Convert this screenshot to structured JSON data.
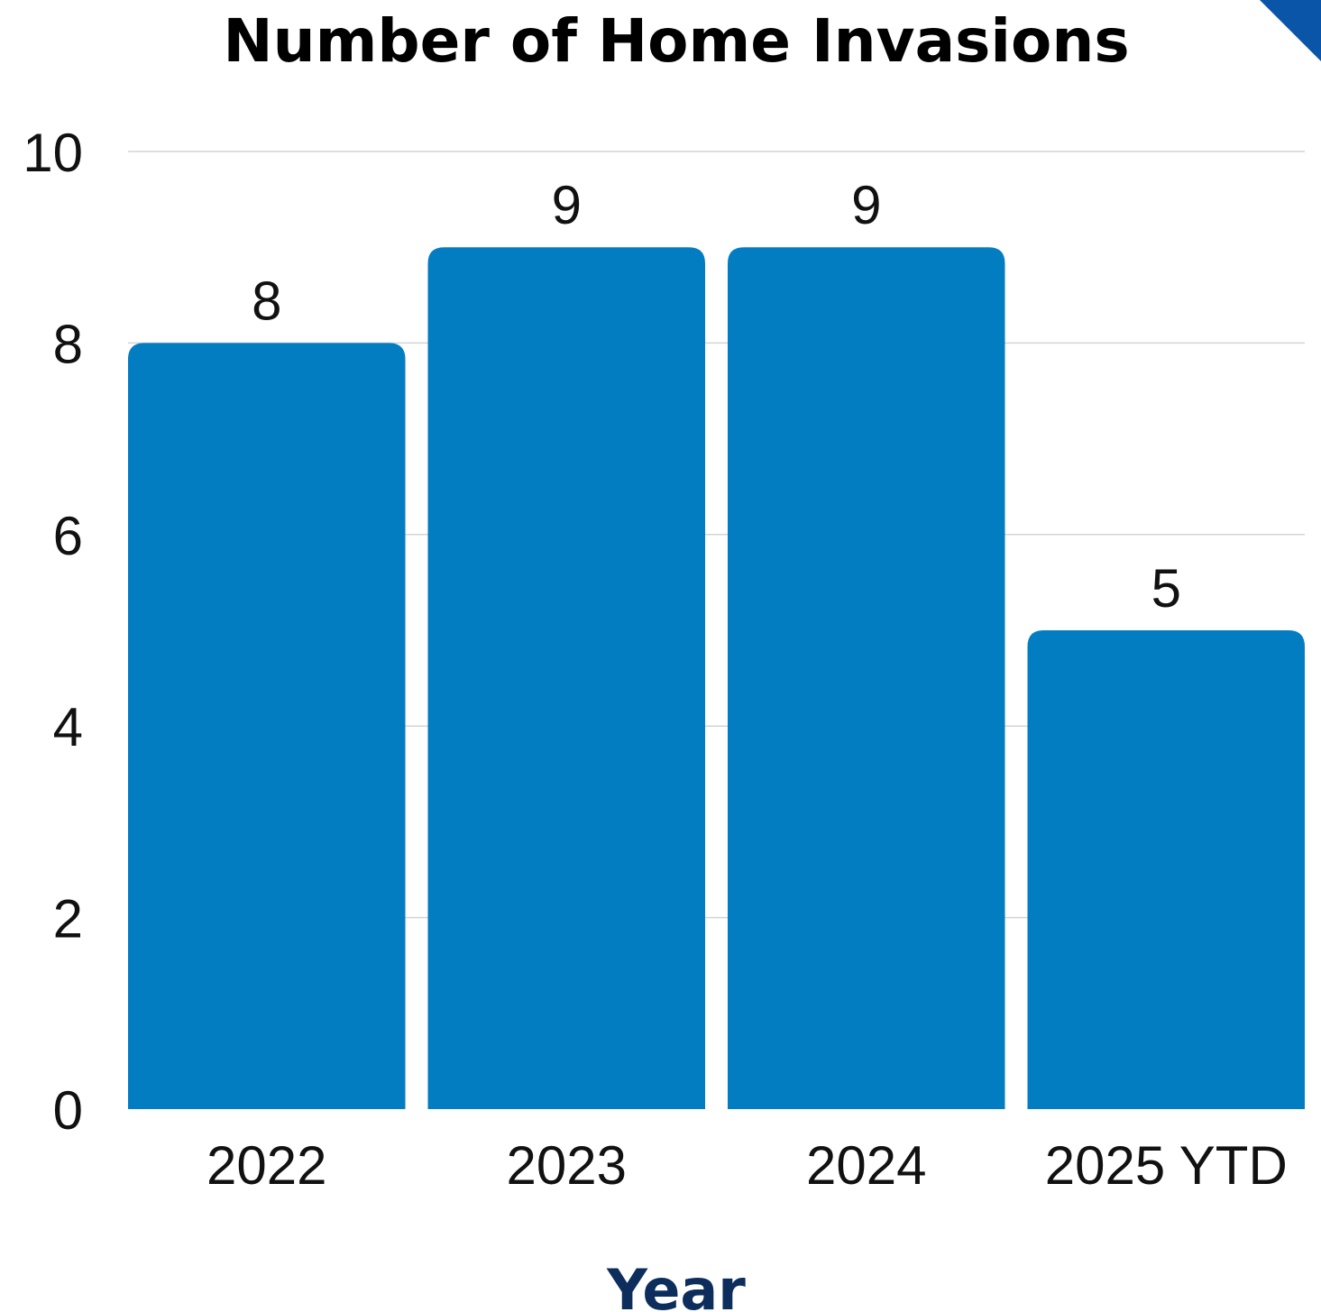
{
  "chart_data": {
    "type": "bar",
    "title": "Number of Home Invasions",
    "xlabel": "Year",
    "ylabel": "",
    "categories": [
      "2022",
      "2023",
      "2024",
      "2025 YTD"
    ],
    "values": [
      8,
      9,
      9,
      5
    ],
    "data_labels": [
      "8",
      "9",
      "9",
      "5"
    ],
    "yticks": [
      "0",
      "2",
      "4",
      "6",
      "8",
      "10"
    ],
    "ylim": [
      0,
      10
    ],
    "grid": true,
    "legend": "none",
    "colors": {
      "bar": "#037dc2",
      "xlabel": "#0d2d5c",
      "corner_accent": "#0a55a8"
    }
  }
}
